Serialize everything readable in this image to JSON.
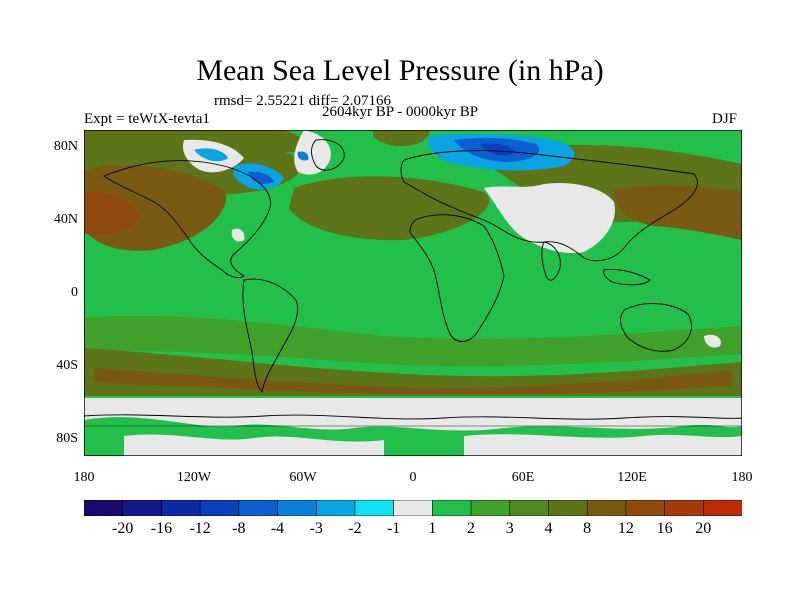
{
  "title": "Mean Sea Level Pressure (in hPa)",
  "stats": "rmsd= 2.55221 diff= 2.07166",
  "experiment": "Expt = teWtX-tevta1",
  "period": "2604kyr BP - 0000kyr BP",
  "season": "DJF",
  "lat_labels": [
    "80N",
    "40N",
    "0",
    "40S",
    "80S"
  ],
  "lon_labels": [
    "180",
    "120W",
    "60W",
    "0",
    "60E",
    "120E",
    "180"
  ],
  "colorbar": {
    "labels": [
      "-20",
      "-16",
      "-12",
      "-8",
      "-4",
      "-3",
      "-2",
      "-1",
      "1",
      "2",
      "3",
      "4",
      "8",
      "12",
      "16",
      "20"
    ],
    "colors": [
      "#1a0a6e",
      "#14188c",
      "#0d2aa6",
      "#0a3fbf",
      "#0b5fd0",
      "#0a7fd8",
      "#09a5e3",
      "#10dff0",
      "#e8e8e8",
      "#22c04a",
      "#3fa02a",
      "#4f8a22",
      "#5e7418",
      "#7a5a12",
      "#8f4a0c",
      "#a53a0a",
      "#bf2a06"
    ]
  }
}
